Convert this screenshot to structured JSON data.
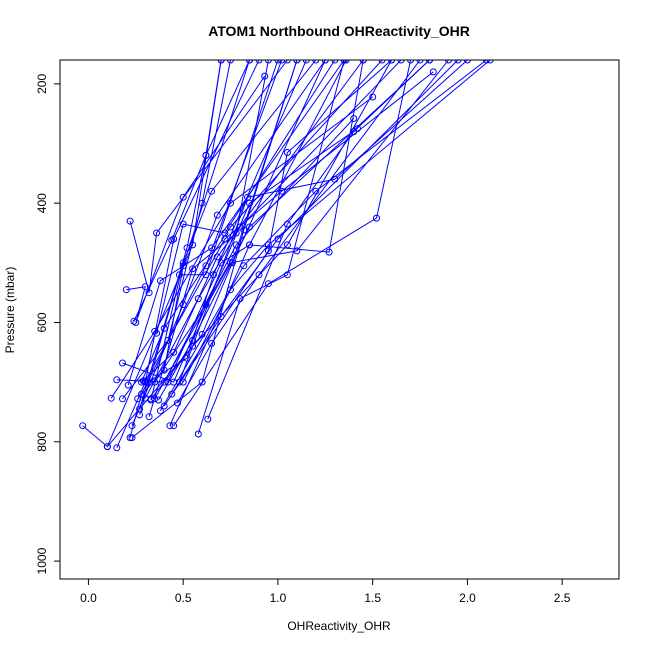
{
  "chart_data": {
    "type": "line",
    "title": "ATOM1 Northbound OHReactivity_OHR",
    "xlabel": "OHReactivity_OHR",
    "ylabel": "Pressure (mbar)",
    "xlim": [
      -0.15,
      2.8
    ],
    "ylim": [
      1030,
      160
    ],
    "y_reversed": true,
    "x_ticks": [
      0.0,
      0.5,
      1.0,
      1.5,
      2.0,
      2.5
    ],
    "x_tick_labels": [
      "0.0",
      "0.5",
      "1.0",
      "1.5",
      "2.0",
      "2.5"
    ],
    "y_ticks": [
      200,
      400,
      600,
      800,
      1000
    ],
    "y_tick_labels": [
      "200",
      "400",
      "600",
      "800",
      "1000"
    ],
    "grid": false,
    "legend": "none",
    "color": "#0000ff",
    "marker": "open-circle",
    "series": [
      {
        "x": [
          -0.03,
          0.1,
          0.55,
          0.7
        ],
        "y": [
          773,
          808,
          470,
          160
        ]
      },
      {
        "x": [
          0.1,
          0.55,
          1.05,
          1.6
        ],
        "y": [
          808,
          640,
          470,
          160
        ]
      },
      {
        "x": [
          0.15,
          0.3,
          0.45,
          0.9
        ],
        "y": [
          810,
          700,
          460,
          160
        ]
      },
      {
        "x": [
          0.22,
          0.28,
          0.62,
          1.02
        ],
        "y": [
          793,
          720,
          505,
          160
        ]
      },
      {
        "x": [
          0.23,
          0.6,
          0.82,
          1.1
        ],
        "y": [
          793,
          700,
          445,
          160
        ]
      },
      {
        "x": [
          0.23,
          0.5,
          0.68,
          1.25
        ],
        "y": [
          773,
          570,
          420,
          160
        ]
      },
      {
        "x": [
          0.58,
          0.8,
          1.05,
          1.35
        ],
        "y": [
          787,
          560,
          520,
          160
        ]
      },
      {
        "x": [
          0.63,
          1.05,
          1.4,
          1.8
        ],
        "y": [
          762,
          435,
          280,
          160
        ]
      },
      {
        "x": [
          0.43,
          0.85,
          1.27,
          1.45
        ],
        "y": [
          773,
          470,
          482,
          160
        ]
      },
      {
        "x": [
          0.45,
          0.95,
          1.52,
          1.7
        ],
        "y": [
          773,
          535,
          425,
          160
        ]
      },
      {
        "x": [
          0.2,
          0.3,
          0.25,
          0.5,
          0.93
        ],
        "y": [
          545,
          540,
          600,
          390,
          187
        ]
      },
      {
        "x": [
          0.12,
          0.35,
          0.75,
          1.5
        ],
        "y": [
          727,
          615,
          400,
          222
        ]
      },
      {
        "x": [
          0.15,
          0.4,
          0.78,
          1.4
        ],
        "y": [
          696,
          700,
          470,
          258
        ]
      },
      {
        "x": [
          0.18,
          0.45,
          0.85,
          1.42
        ],
        "y": [
          668,
          700,
          400,
          275
        ]
      },
      {
        "x": [
          0.3,
          0.72,
          1.02,
          1.82
        ],
        "y": [
          698,
          460,
          380,
          180
        ]
      },
      {
        "x": [
          0.35,
          0.75,
          1.1,
          1.9
        ],
        "y": [
          728,
          500,
          480,
          160
        ]
      },
      {
        "x": [
          0.38,
          0.82,
          1.2,
          2.1
        ],
        "y": [
          748,
          505,
          380,
          160
        ]
      },
      {
        "x": [
          0.4,
          0.95,
          1.05,
          1.6
        ],
        "y": [
          740,
          480,
          315,
          160
        ]
      },
      {
        "x": [
          0.42,
          0.7,
          0.85,
          1.36
        ],
        "y": [
          700,
          500,
          470,
          160
        ]
      },
      {
        "x": [
          0.48,
          0.84,
          1.3,
          2.0
        ],
        "y": [
          700,
          390,
          360,
          160
        ]
      },
      {
        "x": [
          0.32,
          0.55,
          0.78,
          0.95
        ],
        "y": [
          758,
          510,
          450,
          160
        ]
      },
      {
        "x": [
          0.27,
          0.52,
          0.62,
          0.7
        ],
        "y": [
          745,
          475,
          320,
          160
        ]
      },
      {
        "x": [
          0.24,
          0.44,
          0.62,
          0.85
        ],
        "y": [
          598,
          462,
          320,
          160
        ]
      },
      {
        "x": [
          0.22,
          0.32,
          0.36,
          1.05
        ],
        "y": [
          430,
          550,
          450,
          160
        ]
      },
      {
        "x": [
          0.33,
          0.5,
          0.65,
          1.2
        ],
        "y": [
          730,
          500,
          380,
          160
        ]
      },
      {
        "x": [
          0.18,
          0.42,
          0.6,
          0.75
        ],
        "y": [
          728,
          630,
          400,
          160
        ]
      },
      {
        "x": [
          0.36,
          0.5,
          0.72,
          1.3
        ],
        "y": [
          618,
          435,
          450,
          160
        ]
      },
      {
        "x": [
          0.28,
          0.4,
          0.75,
          1.55
        ],
        "y": [
          700,
          610,
          440,
          160
        ]
      },
      {
        "x": [
          0.3,
          0.58,
          0.8,
          1.65
        ],
        "y": [
          727,
          560,
          440,
          160
        ]
      },
      {
        "x": [
          0.27,
          0.48,
          0.62,
          1.0
        ],
        "y": [
          755,
          520,
          520,
          160
        ]
      },
      {
        "x": [
          0.21,
          0.38,
          0.65,
          1.35
        ],
        "y": [
          705,
          530,
          475,
          160
        ]
      },
      {
        "x": [
          0.35,
          0.62,
          0.78,
          1.1
        ],
        "y": [
          700,
          570,
          480,
          160
        ]
      },
      {
        "x": [
          0.29,
          0.45,
          0.68,
          1.45
        ],
        "y": [
          698,
          650,
          490,
          160
        ]
      },
      {
        "x": [
          0.26,
          0.4,
          0.5,
          0.85
        ],
        "y": [
          728,
          680,
          505,
          160
        ]
      },
      {
        "x": [
          0.5,
          0.75,
          0.95,
          2.12
        ],
        "y": [
          700,
          545,
          470,
          160
        ]
      },
      {
        "x": [
          0.44,
          0.7,
          1.0,
          1.95
        ],
        "y": [
          720,
          590,
          460,
          160
        ]
      },
      {
        "x": [
          0.37,
          0.55,
          0.85,
          1.8
        ],
        "y": [
          730,
          630,
          440,
          160
        ]
      },
      {
        "x": [
          0.33,
          0.6,
          0.76,
          1.25
        ],
        "y": [
          728,
          620,
          500,
          160
        ]
      },
      {
        "x": [
          0.31,
          0.52,
          0.66,
          1.15
        ],
        "y": [
          700,
          660,
          520,
          160
        ]
      },
      {
        "x": [
          0.47,
          0.65,
          0.9,
          1.75
        ],
        "y": [
          735,
          635,
          520,
          160
        ]
      }
    ]
  }
}
